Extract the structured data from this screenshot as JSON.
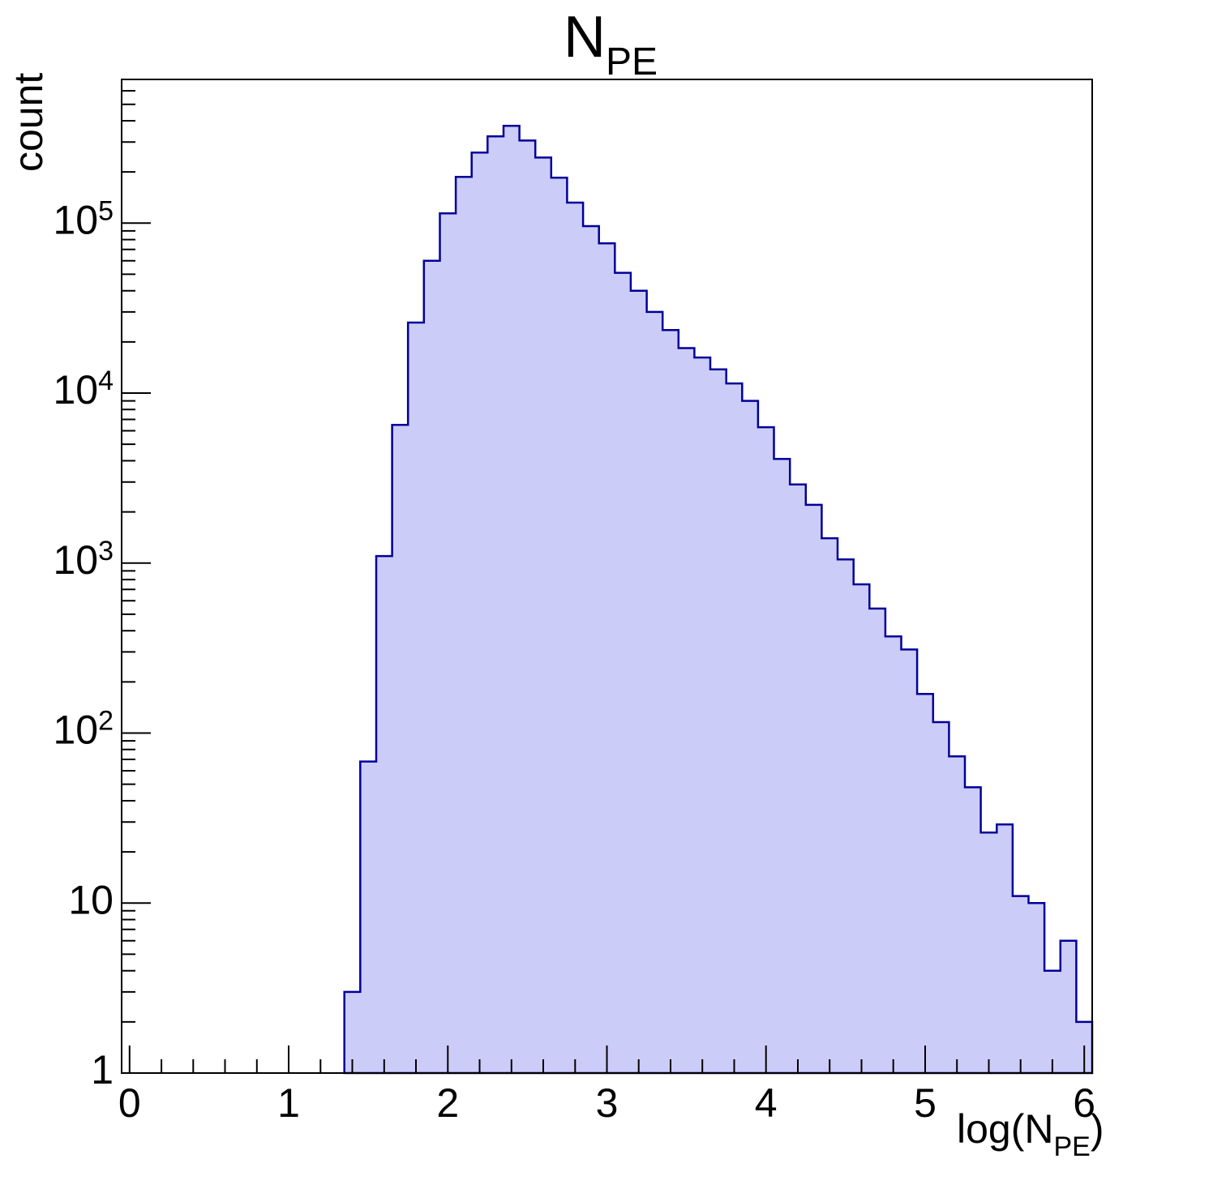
{
  "title": {
    "main": "N",
    "sub": "PE"
  },
  "axes": {
    "y_title": "count",
    "x_title_parts": {
      "pre": "log(N",
      "sub": "PE",
      "post": ")"
    }
  },
  "colors": {
    "histogram_fill": "#ccccf8",
    "histogram_line": "#000099",
    "axis_line": "#000000",
    "background": "#ffffff"
  },
  "chart_data": {
    "type": "bar",
    "subtype": "histogram-step-filled",
    "title": "N_PE",
    "xlabel": "log(N_PE)",
    "ylabel": "count",
    "yscale": "log",
    "grid": false,
    "legend": "none",
    "xlim": [
      -0.05,
      6.05
    ],
    "ylim": [
      1,
      700000
    ],
    "bin_start": 1.35,
    "bin_width": 0.1,
    "bin_centers_first_last": [
      1.4,
      6.0
    ],
    "values": [
      3,
      68,
      1100,
      6500,
      26000,
      60000,
      114000,
      187000,
      260000,
      324000,
      373000,
      306000,
      243000,
      185000,
      132000,
      96000,
      76000,
      51000,
      40000,
      30000,
      23500,
      18400,
      16200,
      13800,
      11400,
      9000,
      6300,
      4100,
      2900,
      2200,
      1400,
      1050,
      750,
      540,
      370,
      310,
      170,
      116,
      73,
      48,
      26,
      29,
      11,
      10,
      4,
      6,
      2
    ],
    "x_ticks": [
      0,
      1,
      2,
      3,
      4,
      5,
      6
    ],
    "x_tick_labels": [
      "0",
      "1",
      "2",
      "3",
      "4",
      "5",
      "6"
    ],
    "x_minor_tick_step": 0.2,
    "y_ticks": [
      {
        "base": "1",
        "exp": "",
        "value": 1
      },
      {
        "base": "10",
        "exp": "",
        "value": 10
      },
      {
        "base": "10",
        "exp": "2",
        "value": 100
      },
      {
        "base": "10",
        "exp": "3",
        "value": 1000
      },
      {
        "base": "10",
        "exp": "4",
        "value": 10000
      },
      {
        "base": "10",
        "exp": "5",
        "value": 100000
      }
    ]
  }
}
